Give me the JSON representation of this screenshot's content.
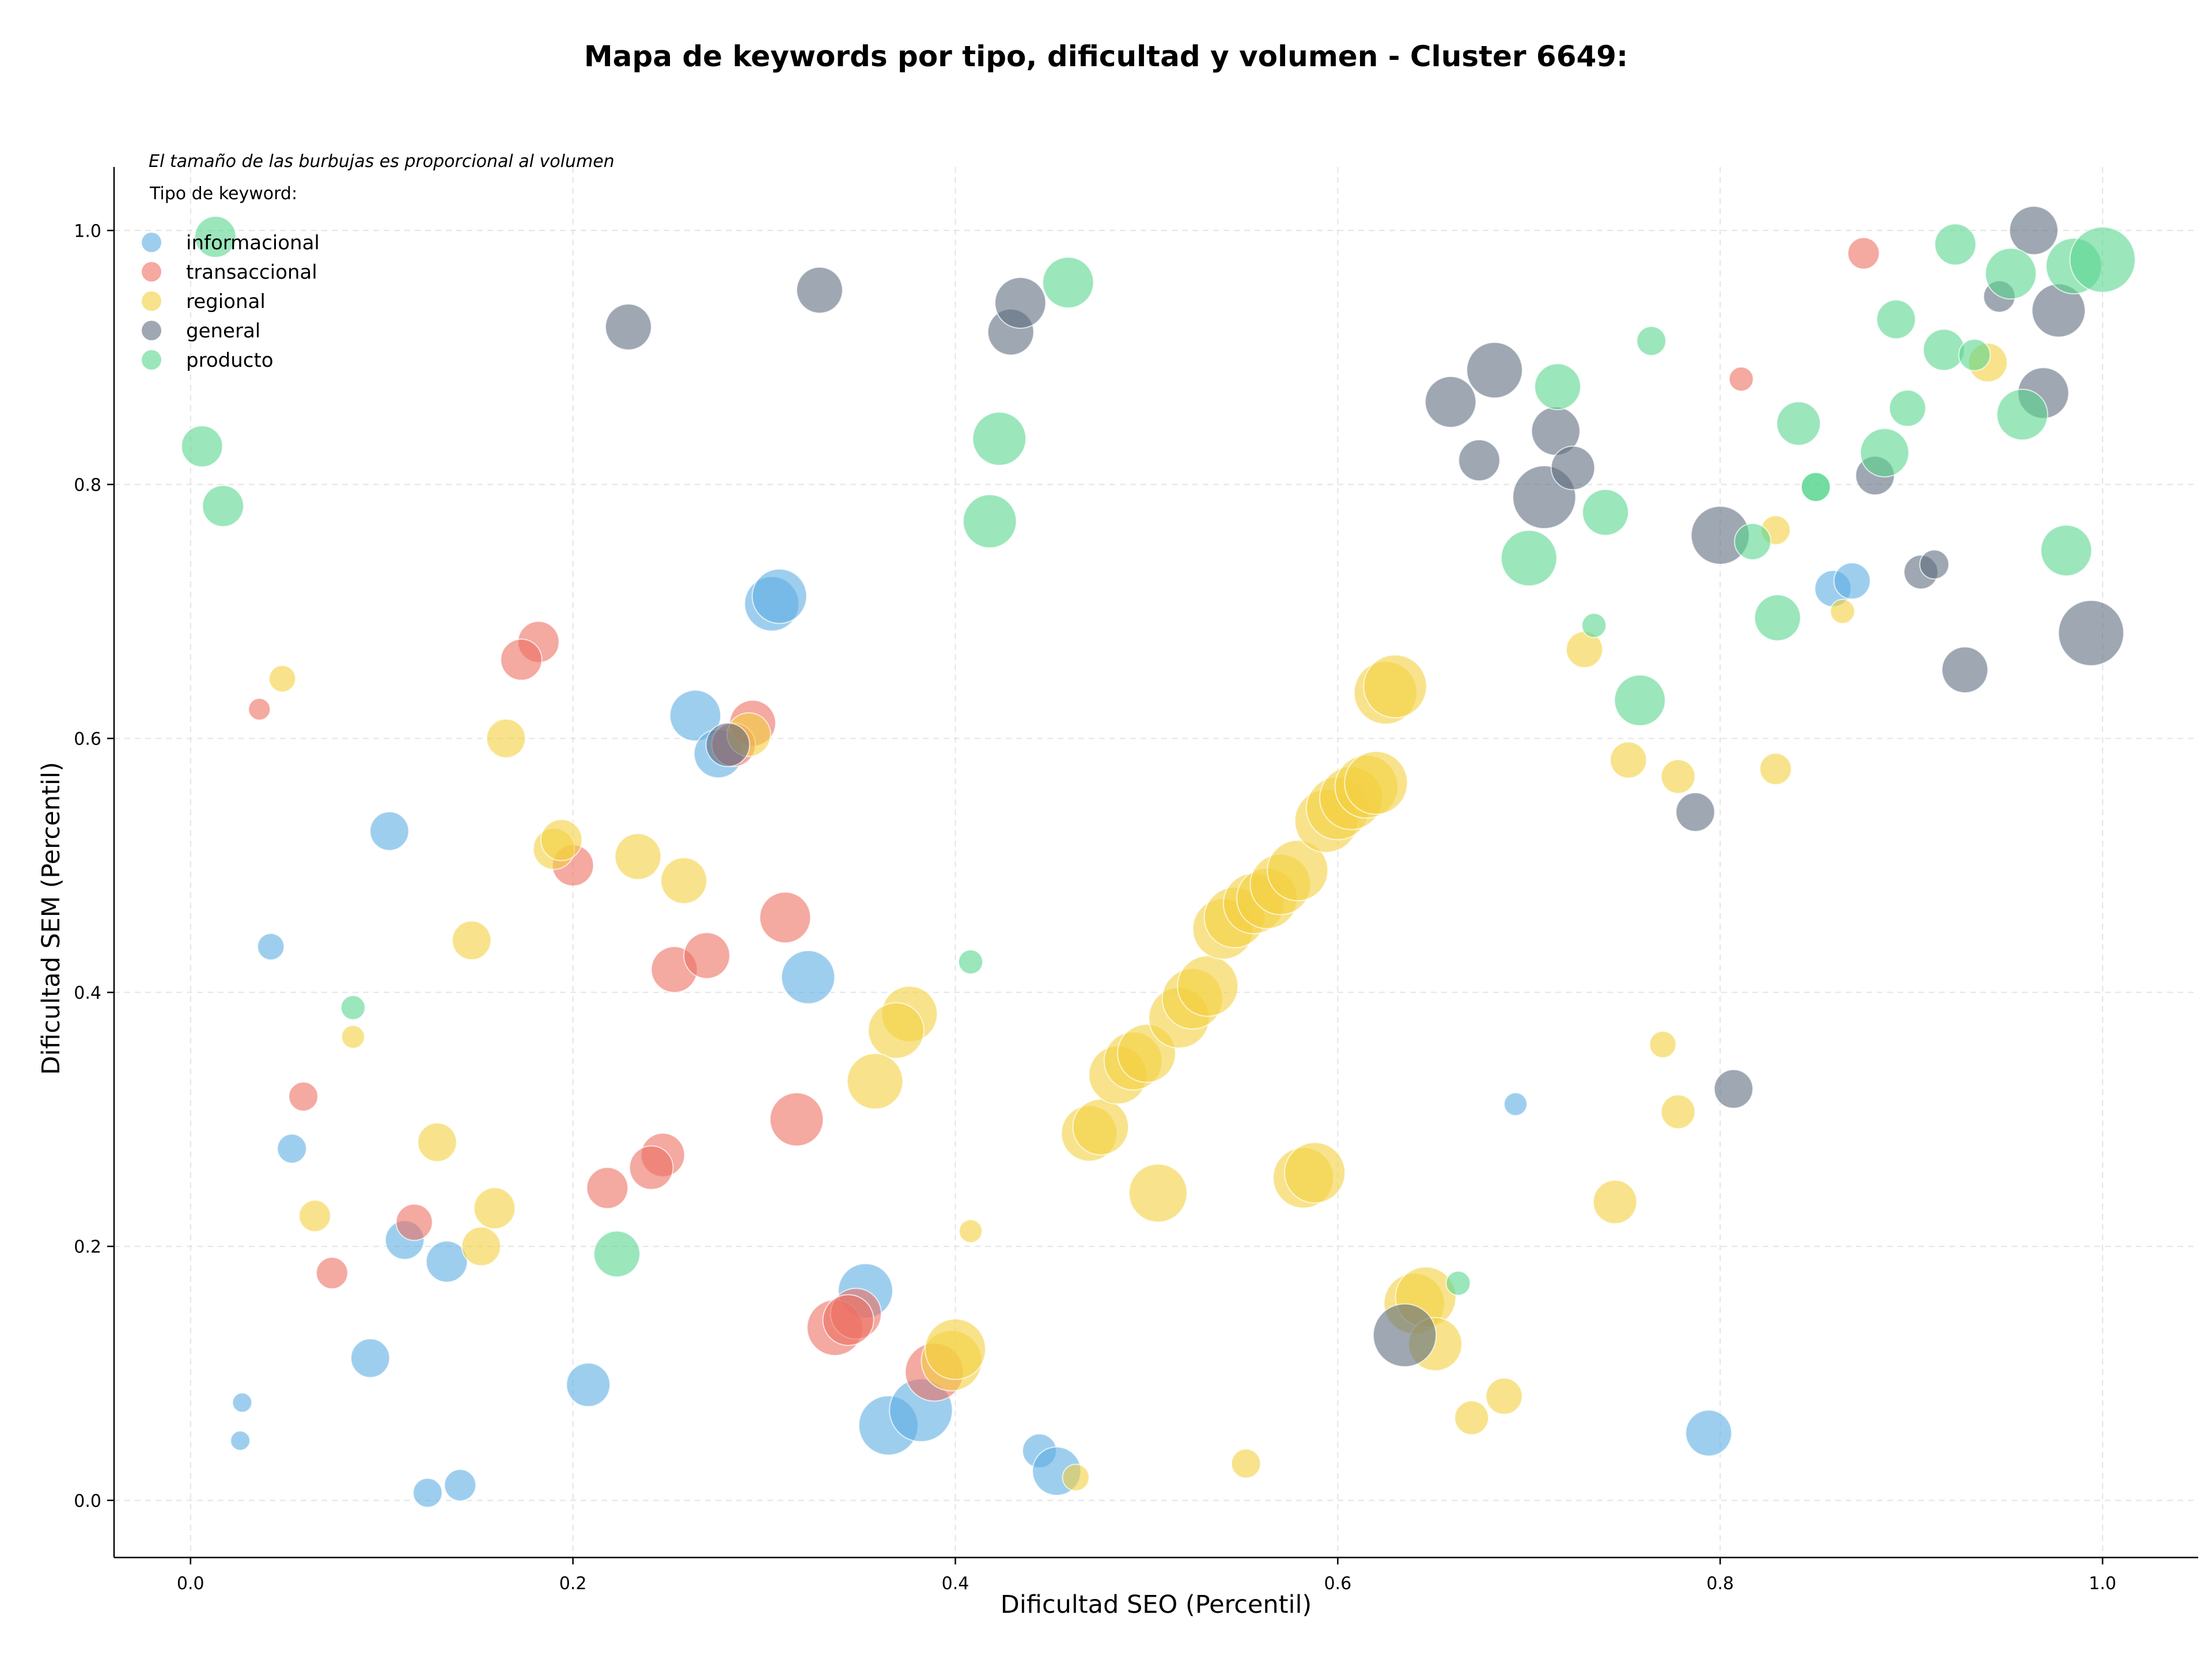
{
  "chart_data": {
    "type": "scatter",
    "title": "Mapa de keywords por tipo, dificultad y volumen - Cluster 6649:",
    "xlabel": "Dificultad SEO (Percentil)",
    "ylabel": "Dificultad SEM (Percentil)",
    "xlim": [
      -0.04,
      1.05
    ],
    "ylim": [
      -0.045,
      1.05
    ],
    "xticks": [
      "0.0",
      "0.2",
      "0.4",
      "0.6",
      "0.8",
      "1.0"
    ],
    "yticks": [
      "0.0",
      "0.2",
      "0.4",
      "0.6",
      "0.8",
      "1.0"
    ],
    "grid": true,
    "note": "El tamaño de las burbujas es proporcional al volumen",
    "legend_title": "Tipo de keyword:",
    "legend_position": "top-left",
    "series": [
      {
        "name": "informacional",
        "color": "#5DADE2",
        "points": [
          [
            0.304,
            0.706,
            4.5
          ],
          [
            0.308,
            0.712,
            4.5
          ],
          [
            0.264,
            0.618,
            4.2
          ],
          [
            0.276,
            0.588,
            4
          ],
          [
            0.104,
            0.527,
            3.2
          ],
          [
            0.323,
            0.412,
            4.4
          ],
          [
            0.042,
            0.436,
            2.2
          ],
          [
            0.053,
            0.277,
            2.4
          ],
          [
            0.112,
            0.205,
            3.2
          ],
          [
            0.134,
            0.188,
            3.4
          ],
          [
            0.094,
            0.112,
            3.2
          ],
          [
            0.208,
            0.091,
            3.6
          ],
          [
            0.027,
            0.077,
            1.6
          ],
          [
            0.026,
            0.047,
            1.6
          ],
          [
            0.124,
            0.006,
            2.4
          ],
          [
            0.141,
            0.012,
            2.6
          ],
          [
            0.353,
            0.165,
            4.5
          ],
          [
            0.365,
            0.059,
            4.9
          ],
          [
            0.382,
            0.071,
            5.2
          ],
          [
            0.444,
            0.039,
            2.8
          ],
          [
            0.453,
            0.023,
            4
          ],
          [
            0.693,
            0.312,
            1.9
          ],
          [
            0.794,
            0.053,
            3.8
          ],
          [
            0.859,
            0.718,
            3
          ],
          [
            0.869,
            0.724,
            3
          ]
        ]
      },
      {
        "name": "transaccional",
        "color": "#EC7063",
        "points": [
          [
            0.182,
            0.676,
            3.4
          ],
          [
            0.173,
            0.662,
            3.4
          ],
          [
            0.036,
            0.623,
            1.8
          ],
          [
            0.294,
            0.612,
            3.8
          ],
          [
            0.284,
            0.595,
            3.6
          ],
          [
            0.2,
            0.5,
            3.4
          ],
          [
            0.311,
            0.459,
            4.2
          ],
          [
            0.253,
            0.418,
            3.8
          ],
          [
            0.27,
            0.429,
            3.8
          ],
          [
            0.059,
            0.318,
            2.4
          ],
          [
            0.317,
            0.3,
            4.4
          ],
          [
            0.218,
            0.246,
            3.4
          ],
          [
            0.247,
            0.272,
            3.6
          ],
          [
            0.241,
            0.262,
            3.6
          ],
          [
            0.117,
            0.219,
            3
          ],
          [
            0.074,
            0.179,
            2.6
          ],
          [
            0.337,
            0.136,
            4.6
          ],
          [
            0.348,
            0.147,
            4.2
          ],
          [
            0.344,
            0.142,
            4.2
          ],
          [
            0.389,
            0.101,
            4.8
          ],
          [
            0.811,
            0.883,
            2
          ],
          [
            0.875,
            0.982,
            2.6
          ]
        ]
      },
      {
        "name": "regional",
        "color": "#F4D03F",
        "points": [
          [
            0.048,
            0.647,
            2.2
          ],
          [
            0.165,
            0.6,
            3.2
          ],
          [
            0.19,
            0.513,
            3.4
          ],
          [
            0.194,
            0.52,
            3.4
          ],
          [
            0.234,
            0.507,
            3.8
          ],
          [
            0.258,
            0.488,
            3.8
          ],
          [
            0.147,
            0.441,
            3.2
          ],
          [
            0.085,
            0.365,
            1.9
          ],
          [
            0.129,
            0.282,
            3.2
          ],
          [
            0.065,
            0.224,
            2.6
          ],
          [
            0.159,
            0.23,
            3.4
          ],
          [
            0.152,
            0.2,
            3.2
          ],
          [
            0.292,
            0.603,
            3.6
          ],
          [
            0.376,
            0.383,
            4.6
          ],
          [
            0.369,
            0.37,
            4.6
          ],
          [
            0.358,
            0.33,
            4.6
          ],
          [
            0.398,
            0.11,
            5
          ],
          [
            0.4,
            0.119,
            5
          ],
          [
            0.408,
            0.212,
            1.9
          ],
          [
            0.463,
            0.018,
            2.2
          ],
          [
            0.47,
            0.289,
            4.6
          ],
          [
            0.476,
            0.294,
            4.6
          ],
          [
            0.485,
            0.335,
            4.8
          ],
          [
            0.493,
            0.346,
            4.8
          ],
          [
            0.5,
            0.352,
            4.8
          ],
          [
            0.506,
            0.242,
            4.8
          ],
          [
            0.517,
            0.38,
            5
          ],
          [
            0.524,
            0.395,
            5
          ],
          [
            0.532,
            0.405,
            5
          ],
          [
            0.54,
            0.45,
            5
          ],
          [
            0.546,
            0.459,
            5
          ],
          [
            0.556,
            0.47,
            5
          ],
          [
            0.563,
            0.474,
            5
          ],
          [
            0.57,
            0.485,
            5
          ],
          [
            0.579,
            0.496,
            5
          ],
          [
            0.582,
            0.254,
            5
          ],
          [
            0.588,
            0.258,
            5
          ],
          [
            0.594,
            0.535,
            5.2
          ],
          [
            0.6,
            0.545,
            5.2
          ],
          [
            0.607,
            0.553,
            5.2
          ],
          [
            0.615,
            0.562,
            5.2
          ],
          [
            0.62,
            0.565,
            5.2
          ],
          [
            0.625,
            0.636,
            5.2
          ],
          [
            0.63,
            0.641,
            5.2
          ],
          [
            0.552,
            0.029,
            2.4
          ],
          [
            0.64,
            0.155,
            5
          ],
          [
            0.646,
            0.16,
            5
          ],
          [
            0.651,
            0.123,
            4.4
          ],
          [
            0.67,
            0.065,
            2.8
          ],
          [
            0.687,
            0.082,
            3
          ],
          [
            0.729,
            0.67,
            3
          ],
          [
            0.745,
            0.235,
            3.6
          ],
          [
            0.752,
            0.583,
            3
          ],
          [
            0.77,
            0.359,
            2.2
          ],
          [
            0.778,
            0.57,
            2.8
          ],
          [
            0.778,
            0.306,
            2.8
          ],
          [
            0.829,
            0.764,
            2.4
          ],
          [
            0.829,
            0.576,
            2.6
          ],
          [
            0.864,
            0.7,
            2
          ],
          [
            0.94,
            0.896,
            3.2
          ]
        ]
      },
      {
        "name": "general",
        "color": "#5D6D7E",
        "points": [
          [
            0.229,
            0.924,
            3.8
          ],
          [
            0.329,
            0.953,
            3.8
          ],
          [
            0.429,
            0.92,
            3.8
          ],
          [
            0.434,
            0.943,
            4.2
          ],
          [
            0.281,
            0.595,
            3.6
          ],
          [
            0.635,
            0.13,
            5.2
          ],
          [
            0.659,
            0.865,
            4.2
          ],
          [
            0.674,
            0.819,
            3.4
          ],
          [
            0.682,
            0.89,
            4.6
          ],
          [
            0.708,
            0.79,
            5.2
          ],
          [
            0.714,
            0.842,
            4
          ],
          [
            0.723,
            0.813,
            3.6
          ],
          [
            0.787,
            0.542,
            3.2
          ],
          [
            0.8,
            0.76,
            4.8
          ],
          [
            0.807,
            0.324,
            3.2
          ],
          [
            0.881,
            0.807,
            3.2
          ],
          [
            0.905,
            0.731,
            2.8
          ],
          [
            0.912,
            0.737,
            2.4
          ],
          [
            0.928,
            0.654,
            3.8
          ],
          [
            0.946,
            0.948,
            2.6
          ],
          [
            0.964,
            1.0,
            4
          ],
          [
            0.969,
            0.872,
            4.2
          ],
          [
            0.977,
            0.937,
            4.4
          ],
          [
            0.994,
            0.683,
            5.4
          ]
        ]
      },
      {
        "name": "producto",
        "color": "#58D68D",
        "points": [
          [
            0.013,
            0.995,
            3.4
          ],
          [
            0.006,
            0.83,
            3.4
          ],
          [
            0.017,
            0.783,
            3.4
          ],
          [
            0.085,
            0.388,
            2
          ],
          [
            0.223,
            0.194,
            3.8
          ],
          [
            0.408,
            0.424,
            2
          ],
          [
            0.418,
            0.771,
            4.4
          ],
          [
            0.423,
            0.836,
            4.4
          ],
          [
            0.459,
            0.959,
            4.2
          ],
          [
            0.663,
            0.171,
            2
          ],
          [
            0.7,
            0.742,
            4.6
          ],
          [
            0.715,
            0.877,
            3.8
          ],
          [
            0.74,
            0.778,
            3.8
          ],
          [
            0.734,
            0.689,
            2
          ],
          [
            0.758,
            0.63,
            4.2
          ],
          [
            0.764,
            0.913,
            2.4
          ],
          [
            0.817,
            0.755,
            3
          ],
          [
            0.83,
            0.695,
            3.8
          ],
          [
            0.841,
            0.848,
            3.6
          ],
          [
            0.85,
            0.798,
            2.4
          ],
          [
            0.85,
            0.798,
            2.4
          ],
          [
            0.892,
            0.93,
            3.2
          ],
          [
            0.886,
            0.825,
            4
          ],
          [
            0.898,
            0.86,
            3
          ],
          [
            0.917,
            0.906,
            3.4
          ],
          [
            0.923,
            0.989,
            3.4
          ],
          [
            0.933,
            0.902,
            2.6
          ],
          [
            0.952,
            0.966,
            4.2
          ],
          [
            0.958,
            0.855,
            4.2
          ],
          [
            0.981,
            0.748,
            4.2
          ],
          [
            0.985,
            0.972,
            4.6
          ],
          [
            1.0,
            0.977,
            5.4
          ]
        ]
      }
    ]
  }
}
